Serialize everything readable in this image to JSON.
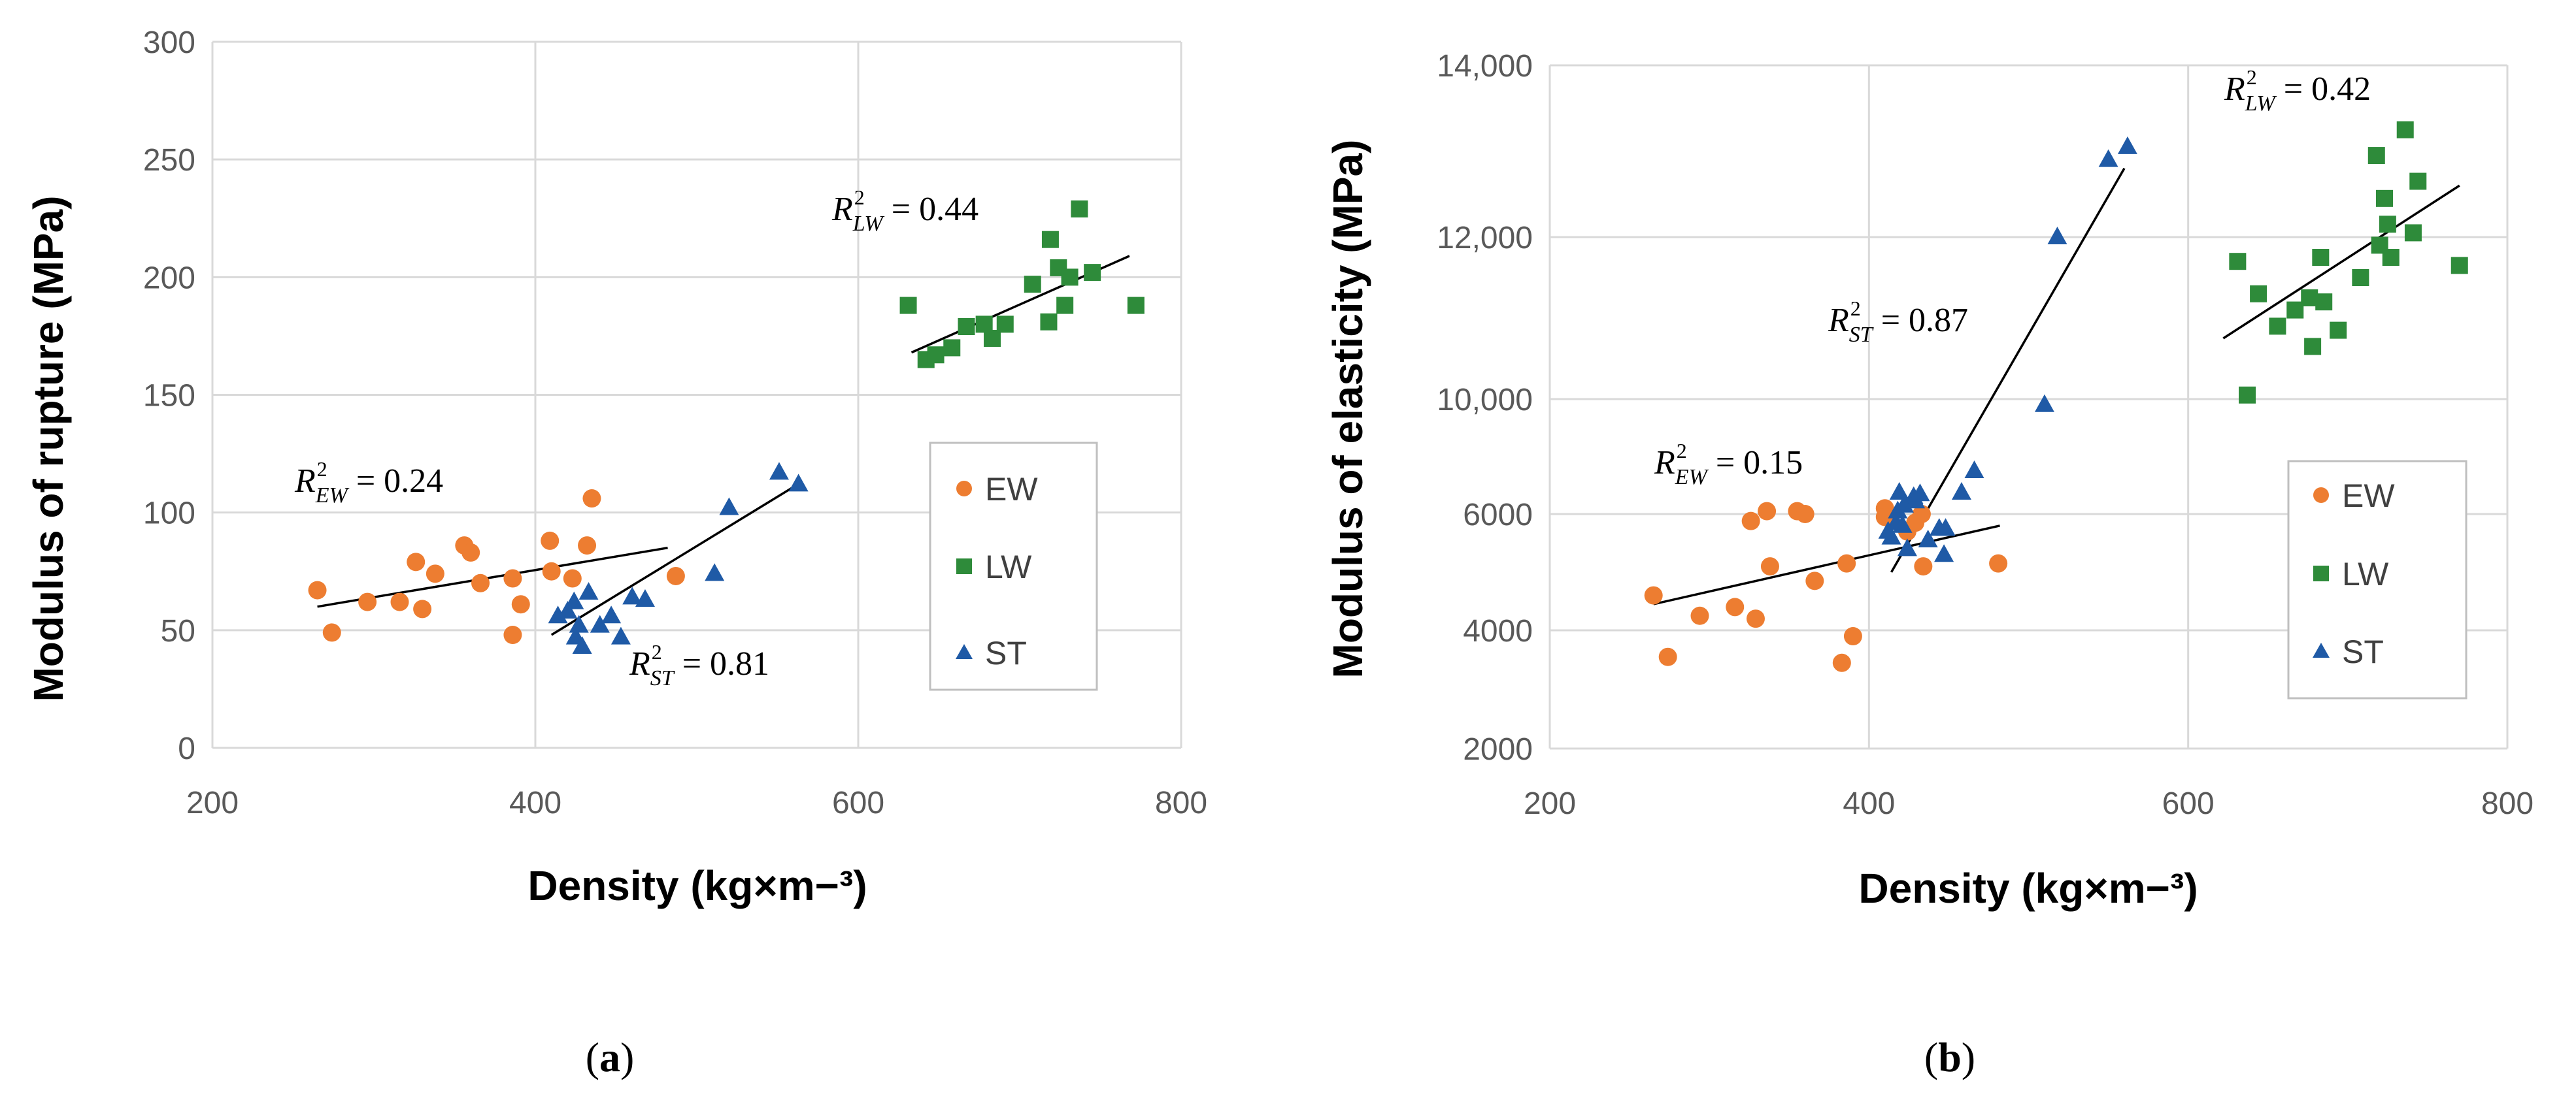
{
  "colors": {
    "EW": "#ed7d31",
    "LW": "#2e8b3a",
    "ST": "#1f5aa6",
    "grid": "#d9d9d9",
    "trend": "#000000"
  },
  "chart_data": [
    {
      "type": "scatter",
      "panel_label": "(a)",
      "caption_open": "(",
      "caption_letter": "a",
      "caption_close": ")",
      "xlabel": "Density (kg×m−³)",
      "ylabel": "Modulus of rupture (MPa)",
      "xlim": [
        200,
        800
      ],
      "ylim": [
        0,
        300
      ],
      "xticks": [
        200,
        400,
        600,
        800
      ],
      "xtick_labels": [
        "200",
        "400",
        "600",
        "800"
      ],
      "yticks": [
        0,
        50,
        100,
        150,
        200,
        250,
        300
      ],
      "ytick_labels": [
        "0",
        "50",
        "100",
        "150",
        "200",
        "250",
        "300"
      ],
      "legend": [
        "EW",
        "LW",
        "ST"
      ],
      "series": [
        {
          "name": "EW",
          "marker": "circle",
          "points": [
            [
              265,
              67
            ],
            [
              274,
              49
            ],
            [
              296,
              62
            ],
            [
              316,
              62
            ],
            [
              326,
              79
            ],
            [
              330,
              59
            ],
            [
              338,
              74
            ],
            [
              356,
              86
            ],
            [
              360,
              83
            ],
            [
              366,
              70
            ],
            [
              386,
              72
            ],
            [
              386,
              48
            ],
            [
              391,
              61
            ],
            [
              409,
              88
            ],
            [
              410,
              75
            ],
            [
              423,
              72
            ],
            [
              432,
              86
            ],
            [
              435,
              106
            ],
            [
              487,
              73
            ]
          ]
        },
        {
          "name": "LW",
          "marker": "square",
          "points": [
            [
              631,
              188
            ],
            [
              642,
              165
            ],
            [
              648,
              167
            ],
            [
              658,
              170
            ],
            [
              667,
              179
            ],
            [
              678,
              180
            ],
            [
              683,
              174
            ],
            [
              691,
              180
            ],
            [
              708,
              197
            ],
            [
              718,
              181
            ],
            [
              719,
              216
            ],
            [
              724,
              204
            ],
            [
              728,
              188
            ],
            [
              731,
              200
            ],
            [
              737,
              229
            ],
            [
              745,
              202
            ],
            [
              772,
              188
            ]
          ]
        },
        {
          "name": "ST",
          "marker": "triangle",
          "points": [
            [
              414,
              56
            ],
            [
              420,
              58
            ],
            [
              424,
              62
            ],
            [
              425,
              47
            ],
            [
              427,
              52
            ],
            [
              429,
              43
            ],
            [
              433,
              66
            ],
            [
              440,
              52
            ],
            [
              447,
              56
            ],
            [
              453,
              47
            ],
            [
              460,
              64
            ],
            [
              468,
              63
            ],
            [
              511,
              74
            ],
            [
              520,
              102
            ],
            [
              551,
              117
            ],
            [
              563,
              112
            ]
          ]
        }
      ],
      "trendlines": [
        {
          "series": "EW",
          "from": [
            265,
            60
          ],
          "to": [
            482,
            85
          ]
        },
        {
          "series": "LW",
          "from": [
            633,
            168
          ],
          "to": [
            768,
            209
          ]
        },
        {
          "series": "ST",
          "from": [
            410,
            48
          ],
          "to": [
            565,
            113
          ]
        }
      ],
      "annotations": [
        {
          "base": "R",
          "sub": "EW",
          "sup": "2",
          "rest": " = 0.24"
        },
        {
          "base": "R",
          "sub": "LW",
          "sup": "2",
          "rest": " = 0.44"
        },
        {
          "base": "R",
          "sub": "ST",
          "sup": "2",
          "rest": " = 0.81"
        }
      ]
    },
    {
      "type": "scatter",
      "panel_label": "(b)",
      "caption_open": "(",
      "caption_letter": "b",
      "caption_close": ")",
      "xlabel": "Density (kg×m−³)",
      "ylabel": "Modulus of elasticity (MPa)",
      "xlim": [
        200,
        800
      ],
      "yscale": "piecewise",
      "yticks": [
        2000,
        4000,
        6000,
        10000,
        12000,
        14000
      ],
      "ytick_labels": [
        "2000",
        "4000",
        "6000",
        "10,000",
        "12,000",
        "14,000"
      ],
      "legend": [
        "EW",
        "LW",
        "ST"
      ],
      "series": [
        {
          "name": "EW",
          "marker": "circle",
          "points": [
            [
              265,
              4600
            ],
            [
              274,
              3550
            ],
            [
              294,
              4250
            ],
            [
              316,
              4400
            ],
            [
              326,
              5880
            ],
            [
              329,
              4200
            ],
            [
              336,
              6100
            ],
            [
              338,
              5100
            ],
            [
              355,
              6100
            ],
            [
              360,
              6000
            ],
            [
              366,
              4850
            ],
            [
              383,
              3450
            ],
            [
              386,
              5150
            ],
            [
              390,
              3900
            ],
            [
              410,
              6200
            ],
            [
              410,
              5950
            ],
            [
              424,
              5700
            ],
            [
              429,
              5850
            ],
            [
              433,
              6000
            ],
            [
              434,
              5100
            ],
            [
              481,
              5150
            ]
          ]
        },
        {
          "name": "LW",
          "marker": "square",
          "points": [
            [
              631,
              11700
            ],
            [
              637,
              10050
            ],
            [
              644,
              11300
            ],
            [
              656,
              10900
            ],
            [
              667,
              11100
            ],
            [
              676,
              11250
            ],
            [
              678,
              10650
            ],
            [
              683,
              11750
            ],
            [
              685,
              11200
            ],
            [
              694,
              10850
            ],
            [
              708,
              11500
            ],
            [
              718,
              12950
            ],
            [
              720,
              11900
            ],
            [
              723,
              12450
            ],
            [
              725,
              12150
            ],
            [
              727,
              11750
            ],
            [
              736,
              13250
            ],
            [
              741,
              12050
            ],
            [
              744,
              12650
            ],
            [
              770,
              11650
            ]
          ]
        },
        {
          "name": "ST",
          "marker": "triangle",
          "points": [
            [
              412,
              5700
            ],
            [
              414,
              5600
            ],
            [
              417,
              5850
            ],
            [
              418,
              6100
            ],
            [
              419,
              6750
            ],
            [
              421,
              5800
            ],
            [
              422,
              6300
            ],
            [
              424,
              5400
            ],
            [
              428,
              6600
            ],
            [
              429,
              6450
            ],
            [
              432,
              6700
            ],
            [
              437,
              5550
            ],
            [
              444,
              5750
            ],
            [
              447,
              5300
            ],
            [
              448,
              5750
            ],
            [
              458,
              6750
            ],
            [
              466,
              7500
            ],
            [
              510,
              9800
            ],
            [
              518,
              12000
            ],
            [
              550,
              12900
            ],
            [
              562,
              13050
            ]
          ]
        }
      ],
      "trendlines": [
        {
          "series": "EW",
          "from": [
            265,
            4450
          ],
          "to": [
            482,
            5800
          ]
        },
        {
          "series": "LW",
          "from": [
            622,
            10750
          ],
          "to": [
            770,
            12600
          ]
        },
        {
          "series": "ST",
          "from": [
            414,
            5000
          ],
          "to": [
            560,
            12800
          ]
        }
      ],
      "annotations": [
        {
          "base": "R",
          "sub": "LW",
          "sup": "2",
          "rest": " = 0.42"
        },
        {
          "base": "R",
          "sub": "ST",
          "sup": "2",
          "rest": " = 0.87"
        },
        {
          "base": "R",
          "sub": "EW",
          "sup": "2",
          "rest": " = 0.15"
        }
      ]
    }
  ]
}
